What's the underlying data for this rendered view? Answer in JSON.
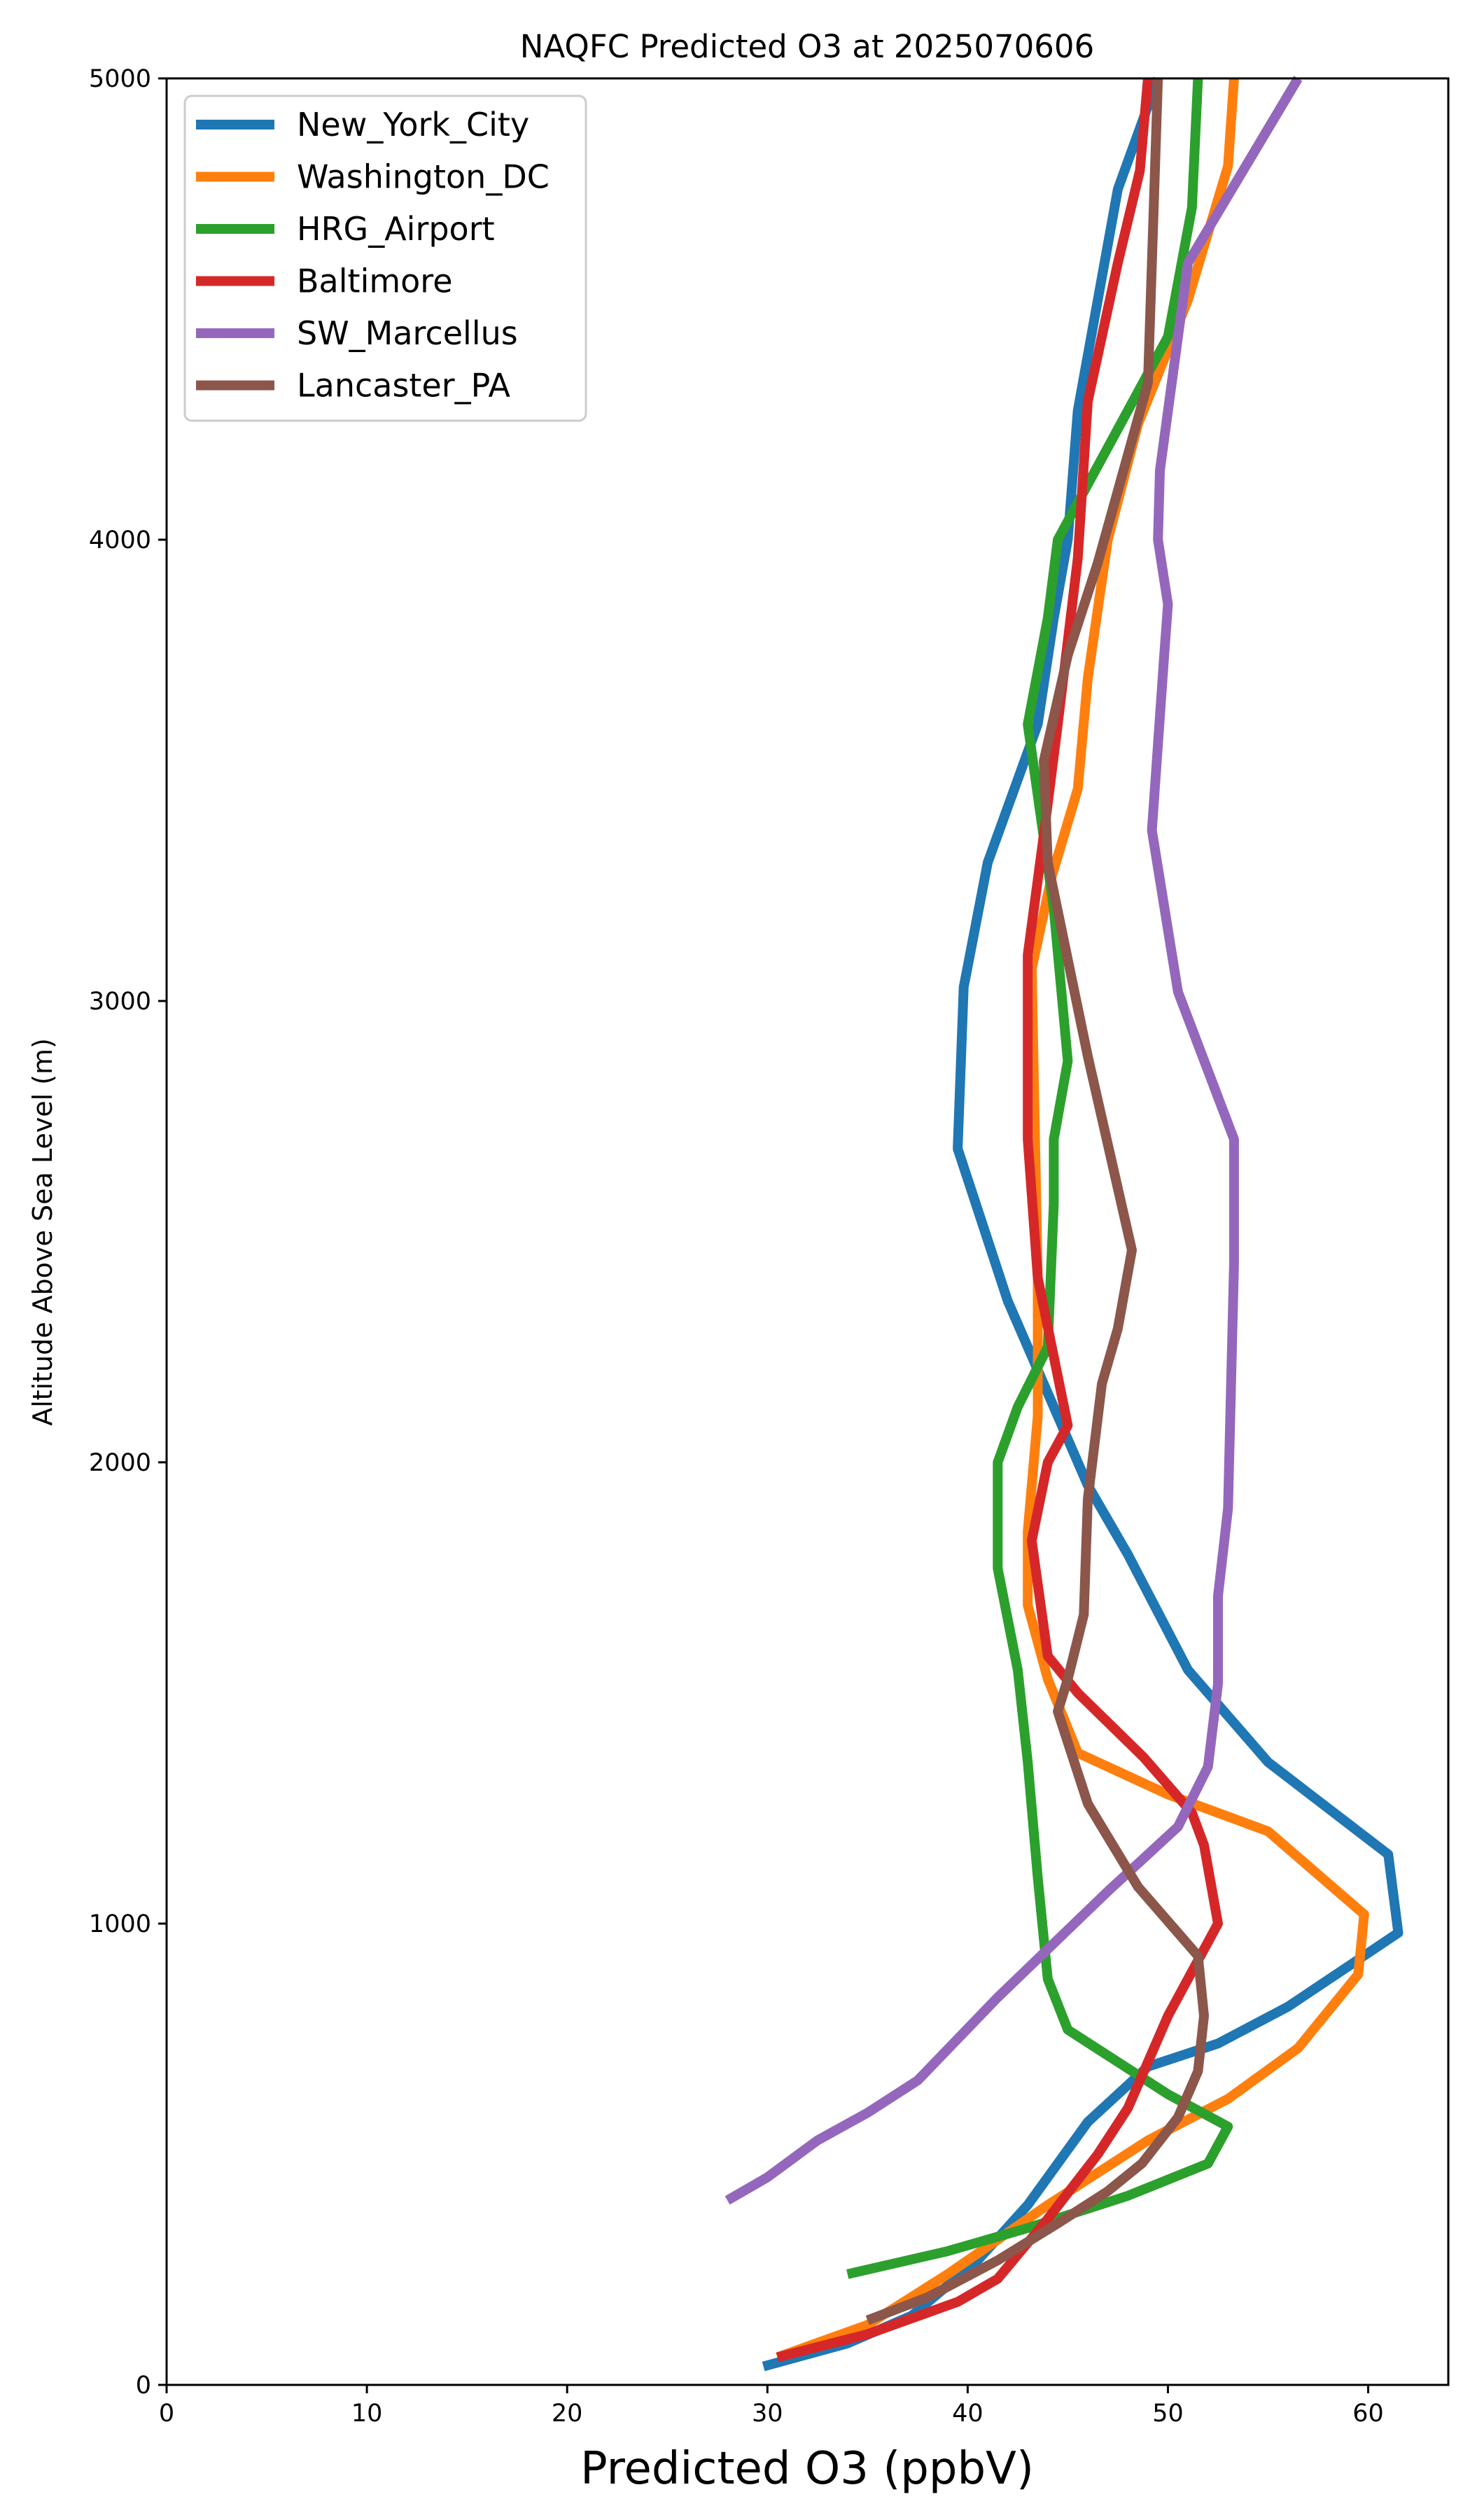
{
  "chart_data": {
    "type": "line",
    "title": "NAQFC Predicted O3 at 2025070606",
    "xlabel": "Predicted O3 (ppbV)",
    "ylabel": "Altitude Above Sea Level (m)",
    "xlim": [
      0,
      64
    ],
    "ylim": [
      0,
      5000
    ],
    "xticks": [
      0,
      10,
      20,
      30,
      40,
      50,
      60
    ],
    "yticks": [
      0,
      1000,
      2000,
      3000,
      4000,
      5000
    ],
    "grid": false,
    "legend_position": "top-left",
    "series": [
      {
        "name": "New_York_City",
        "color": "#1f77b4",
        "x": [
          29.8,
          34.0,
          37.2,
          40.5,
          43.0,
          46.0,
          49.0,
          52.5,
          56.0,
          61.5,
          61.0,
          55.0,
          51.0,
          48.0,
          46.0,
          44.5,
          42.0,
          39.5,
          39.8,
          41.0,
          43.5,
          44.3,
          45.0,
          45.5,
          47.5,
          49.5
        ],
        "y": [
          40,
          90,
          150,
          270,
          390,
          570,
          690,
          740,
          820,
          980,
          1150,
          1350,
          1550,
          1800,
          1950,
          2100,
          2350,
          2680,
          3030,
          3300,
          3600,
          3830,
          4000,
          4280,
          4760,
          5000
        ]
      },
      {
        "name": "Washington_DC",
        "color": "#ff7f0e",
        "x": [
          30.5,
          35.0,
          39.0,
          44.0,
          49.0,
          53.0,
          56.5,
          59.5,
          59.8,
          55.0,
          50.0,
          45.5,
          44.0,
          43.0,
          43.0,
          43.5,
          43.5,
          43.2,
          44.2,
          45.5,
          46.0,
          47.0,
          48.5,
          51.0,
          53.0,
          53.3
        ],
        "y": [
          60,
          130,
          240,
          390,
          530,
          620,
          730,
          890,
          1020,
          1200,
          1280,
          1370,
          1530,
          1690,
          1850,
          2100,
          2400,
          3070,
          3270,
          3460,
          3700,
          4000,
          4250,
          4520,
          4810,
          5000
        ]
      },
      {
        "name": "HRG_Airport",
        "color": "#2ca02c",
        "x": [
          34.0,
          39.0,
          43.0,
          48.0,
          52.0,
          53.0,
          50.0,
          45.0,
          44.0,
          43.5,
          43.0,
          42.5,
          41.5,
          41.5,
          42.5,
          44.0,
          44.3,
          44.3,
          45.0,
          44.3,
          43.0,
          44.0,
          44.5,
          47.0,
          50.0,
          51.2,
          51.5
        ],
        "y": [
          240,
          290,
          340,
          410,
          480,
          560,
          630,
          770,
          880,
          1100,
          1350,
          1550,
          1770,
          2000,
          2120,
          2250,
          2560,
          2700,
          2870,
          3200,
          3600,
          3830,
          4000,
          4200,
          4440,
          4720,
          5000
        ]
      },
      {
        "name": "Baltimore",
        "color": "#d62728",
        "x": [
          30.5,
          35.0,
          39.5,
          41.5,
          44.0,
          46.5,
          48.0,
          50.0,
          52.5,
          51.8,
          51.2,
          48.8,
          45.5,
          44.0,
          43.2,
          44.0,
          45.0,
          43.5,
          43.0,
          43.0,
          43.8,
          44.5,
          45.5,
          46.0,
          47.5,
          48.6,
          49.0
        ],
        "y": [
          60,
          110,
          180,
          230,
          360,
          500,
          600,
          800,
          1000,
          1170,
          1240,
          1360,
          1500,
          1580,
          1830,
          2000,
          2080,
          2400,
          2700,
          3100,
          3360,
          3600,
          3960,
          4300,
          4600,
          4800,
          5000
        ]
      },
      {
        "name": "SW_Marcellus",
        "color": "#9467bd",
        "x": [
          28.0,
          30.0,
          32.5,
          35.0,
          37.5,
          41.5,
          47.0,
          50.5,
          52.0,
          52.5,
          52.5,
          53.0,
          53.3,
          53.3,
          50.5,
          49.2,
          49.8,
          50.0,
          49.5,
          49.6,
          51.0,
          56.5
        ],
        "y": [
          400,
          450,
          530,
          590,
          660,
          840,
          1070,
          1210,
          1340,
          1520,
          1710,
          1900,
          2430,
          2700,
          3020,
          3370,
          3740,
          3860,
          4000,
          4150,
          4600,
          5000
        ]
      },
      {
        "name": "Lancaster_PA",
        "color": "#8c564b",
        "x": [
          35.0,
          38.0,
          41.5,
          44.5,
          47.0,
          48.7,
          50.5,
          51.5,
          51.8,
          51.5,
          48.5,
          46.0,
          44.5,
          45.0,
          45.8,
          46.0,
          46.7,
          47.5,
          48.2,
          46.0,
          44.0,
          43.8,
          45.0,
          46.5,
          49.0,
          49.3,
          49.5
        ],
        "y": [
          140,
          190,
          270,
          350,
          420,
          480,
          580,
          680,
          800,
          930,
          1080,
          1260,
          1460,
          1530,
          1670,
          1920,
          2170,
          2290,
          2460,
          2880,
          3300,
          3520,
          3750,
          3950,
          4340,
          4730,
          5000
        ]
      }
    ]
  }
}
